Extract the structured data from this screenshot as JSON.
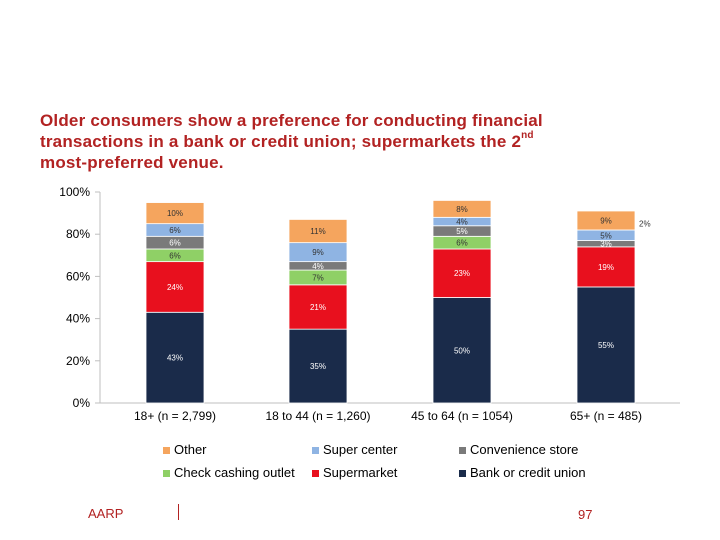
{
  "title": {
    "line1": "Older consumers show a preference for conducting financial",
    "line2": "transactions in a bank or credit union; supermarkets the 2",
    "line2_sup": "nd",
    "line3": "most-preferred venue."
  },
  "footer": {
    "org": "AARP",
    "page": "97"
  },
  "colors": {
    "Bank or credit union": "#1a2b4a",
    "Supermarket": "#e8101e",
    "Check cashing outlet": "#8fd066",
    "Convenience store": "#7a7a7a",
    "Super center": "#8fb4e3",
    "Other": "#f5a55e"
  },
  "chart_data": {
    "type": "bar",
    "stacked": true,
    "categories": [
      "18+ (n = 2,799)",
      "18 to 44 (n = 1,260)",
      "45 to 64 (n = 1054)",
      "65+ (n = 485)"
    ],
    "ylim": [
      0,
      100
    ],
    "yticks": [
      "0%",
      "20%",
      "40%",
      "60%",
      "80%",
      "100%"
    ],
    "legend_position": "bottom",
    "legend_order": [
      "Other",
      "Super center",
      "Convenience store",
      "Check cashing outlet",
      "Supermarket",
      "Bank or credit union"
    ],
    "series": [
      {
        "name": "Bank or credit union",
        "values": [
          43,
          35,
          50,
          55
        ],
        "labels": [
          "43%",
          "35%",
          "50%",
          "55%"
        ]
      },
      {
        "name": "Supermarket",
        "values": [
          24,
          21,
          23,
          19
        ],
        "labels": [
          "24%",
          "21%",
          "23%",
          "19%"
        ]
      },
      {
        "name": "Check cashing outlet",
        "values": [
          6,
          7,
          6,
          0
        ],
        "labels": [
          "6%",
          "7%",
          "6%",
          ""
        ]
      },
      {
        "name": "Convenience store",
        "values": [
          6,
          4,
          5,
          3
        ],
        "labels": [
          "6%",
          "4%",
          "5%",
          "3%"
        ]
      },
      {
        "name": "Super center",
        "values": [
          6,
          9,
          4,
          5
        ],
        "labels": [
          "6%",
          "9%",
          "4%",
          "5%"
        ]
      },
      {
        "name": "Other",
        "values": [
          10,
          11,
          8,
          9
        ],
        "labels": [
          "10%",
          "11%",
          "8%",
          "9%"
        ]
      }
    ],
    "annotations": [
      {
        "category": "65+ (n = 485)",
        "text": "2%"
      }
    ]
  }
}
